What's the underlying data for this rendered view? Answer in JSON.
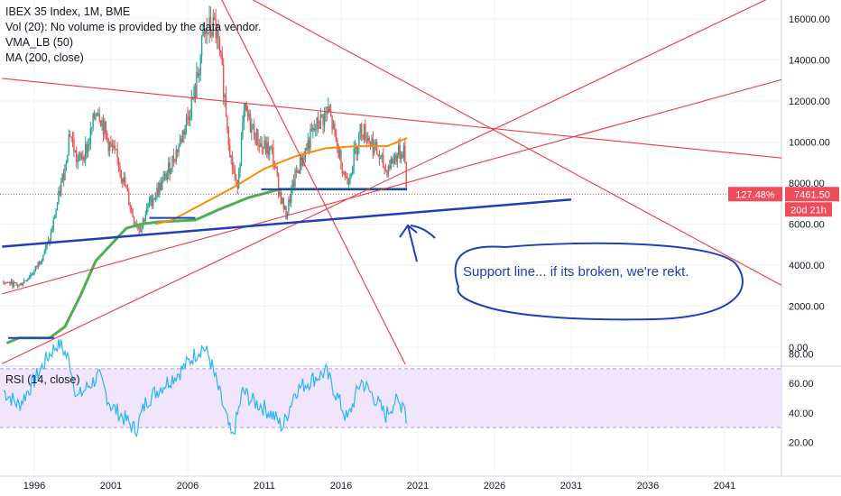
{
  "legend": {
    "title": "IBEX 35 Index, 1M, BME",
    "volume_note": "Vol (20): No volume is provided by the data vendor.",
    "vma": "VMA_LB (50)",
    "ma": "MA (200, close)",
    "rsi": "RSI (14, close)"
  },
  "price_badge": {
    "percent": "127.48%",
    "price": "7461.50",
    "countdown": "20d 21h"
  },
  "annotation": "Support line... if its broken, we're rekt.",
  "colors": {
    "up": "#26a69a",
    "down": "#ef5350",
    "ma200": "#ff8c00",
    "vma50": "#4caf50",
    "trendline": "#f23645",
    "support": "#1e3fb5",
    "rsi": "#29b6f6",
    "rsi_band": "#f0e5fb",
    "badge": "#f04c5c"
  },
  "chart_data": [
    {
      "type": "candlestick",
      "title": "IBEX 35 Index, 1M, BME",
      "x_ticks": [
        "1996",
        "2001",
        "2006",
        "2011",
        "2016",
        "2021",
        "2026",
        "2031",
        "2036",
        "2041"
      ],
      "x_tick_years": [
        1996,
        2001,
        2006,
        2011,
        2016,
        2021,
        2026,
        2031,
        2036,
        2041
      ],
      "y_ticks": [
        "0.00",
        "2000.00",
        "4000.00",
        "6000.00",
        "8000.00",
        "10000.00",
        "12000.00",
        "14000.00",
        "16000.00"
      ],
      "y_tick_values": [
        0,
        2000,
        4000,
        6000,
        8000,
        10000,
        12000,
        14000,
        16000
      ],
      "close_anchors": [
        [
          1994.0,
          3200
        ],
        [
          1995.0,
          3000
        ],
        [
          1996.0,
          3700
        ],
        [
          1997.0,
          5200
        ],
        [
          1998.0,
          8800
        ],
        [
          1998.3,
          10600
        ],
        [
          1998.8,
          9000
        ],
        [
          1999.5,
          9800
        ],
        [
          2000.1,
          11800
        ],
        [
          2000.8,
          10000
        ],
        [
          2001.5,
          9000
        ],
        [
          2002.5,
          6200
        ],
        [
          2002.9,
          5800
        ],
        [
          2003.5,
          7000
        ],
        [
          2004.5,
          8200
        ],
        [
          2005.5,
          10000
        ],
        [
          2006.5,
          12500
        ],
        [
          2007.0,
          15000
        ],
        [
          2007.4,
          15500
        ],
        [
          2007.8,
          15600
        ],
        [
          2008.3,
          13000
        ],
        [
          2008.8,
          9300
        ],
        [
          2009.2,
          7700
        ],
        [
          2009.7,
          11500
        ],
        [
          2010.3,
          10500
        ],
        [
          2010.8,
          9800
        ],
        [
          2011.5,
          9500
        ],
        [
          2012.0,
          7500
        ],
        [
          2012.4,
          6400
        ],
        [
          2013.0,
          8300
        ],
        [
          2014.0,
          10200
        ],
        [
          2014.5,
          10900
        ],
        [
          2015.2,
          11500
        ],
        [
          2015.8,
          9600
        ],
        [
          2016.4,
          8000
        ],
        [
          2017.3,
          10700
        ],
        [
          2018.0,
          10000
        ],
        [
          2018.9,
          8600
        ],
        [
          2019.5,
          9300
        ],
        [
          2019.9,
          9500
        ],
        [
          2020.1,
          9700
        ],
        [
          2020.3,
          7450
        ]
      ],
      "ma200_anchors": [
        [
          2003.9,
          6000
        ],
        [
          2005.0,
          6200
        ],
        [
          2007.0,
          7000
        ],
        [
          2009.0,
          7800
        ],
        [
          2011.0,
          8700
        ],
        [
          2013.0,
          9300
        ],
        [
          2015.0,
          9700
        ],
        [
          2017.0,
          9800
        ],
        [
          2019.0,
          9800
        ],
        [
          2020.3,
          10200
        ]
      ],
      "vma50_anchors": [
        [
          1994.2,
          200
        ],
        [
          1995.0,
          450
        ],
        [
          1997.0,
          450
        ],
        [
          1998.0,
          1000
        ],
        [
          1999.0,
          2500
        ],
        [
          2000.0,
          4200
        ],
        [
          2001.0,
          5000
        ],
        [
          2002.0,
          5800
        ],
        [
          2003.0,
          6000
        ],
        [
          2004.0,
          6100
        ],
        [
          2006.5,
          6200
        ],
        [
          2008.0,
          6700
        ],
        [
          2010.0,
          7300
        ],
        [
          2012.0,
          7700
        ],
        [
          2014.0,
          7700
        ],
        [
          2016.0,
          7700
        ],
        [
          2020.3,
          7700
        ]
      ],
      "horizontal_segments": [
        {
          "x0": 1994.3,
          "x1": 1997.3,
          "y": 450
        },
        {
          "x0": 2003.5,
          "x1": 2006.5,
          "y": 6300
        },
        {
          "x0": 2010.8,
          "x1": 2020.3,
          "y": 7700
        }
      ],
      "support_line": {
        "x0": 1993.9,
        "y0": 4900,
        "x1": 2031.0,
        "y1": 7200
      },
      "trendlines": [
        {
          "x0": 1993.9,
          "y0": 13100,
          "x1": 2045.0,
          "y1": 9200
        },
        {
          "x0": 2007.6,
          "y0": 18000,
          "x1": 2045.0,
          "y1": 2900
        },
        {
          "x0": 2007.5,
          "y0": 18000,
          "x1": 2020.5,
          "y1": -1300
        },
        {
          "x0": 1993.9,
          "y0": 2600,
          "x1": 2045.0,
          "y1": 13100
        },
        {
          "x0": 1993.9,
          "y0": -800,
          "x1": 2045.0,
          "y1": 17400
        }
      ],
      "last_price": 7461.5
    },
    {
      "type": "line",
      "title": "RSI (14, close)",
      "y_ticks": [
        "20.00",
        "40.00",
        "60.00",
        "80.00"
      ],
      "y_tick_values": [
        20,
        40,
        60,
        80
      ],
      "band": [
        30,
        70
      ],
      "rsi_anchors": [
        [
          1994.0,
          55
        ],
        [
          1995.0,
          45
        ],
        [
          1996.0,
          62
        ],
        [
          1997.0,
          80
        ],
        [
          1997.6,
          88
        ],
        [
          1998.3,
          75
        ],
        [
          1998.8,
          50
        ],
        [
          1999.5,
          58
        ],
        [
          2000.2,
          65
        ],
        [
          2001.0,
          45
        ],
        [
          2002.0,
          35
        ],
        [
          2002.6,
          28
        ],
        [
          2003.3,
          48
        ],
        [
          2004.3,
          58
        ],
        [
          2005.5,
          68
        ],
        [
          2006.5,
          80
        ],
        [
          2007.0,
          85
        ],
        [
          2007.4,
          78
        ],
        [
          2008.3,
          45
        ],
        [
          2008.9,
          22
        ],
        [
          2009.6,
          55
        ],
        [
          2010.2,
          48
        ],
        [
          2010.8,
          45
        ],
        [
          2011.6,
          38
        ],
        [
          2012.2,
          30
        ],
        [
          2013.0,
          55
        ],
        [
          2014.0,
          62
        ],
        [
          2015.0,
          68
        ],
        [
          2015.8,
          50
        ],
        [
          2016.4,
          35
        ],
        [
          2017.3,
          62
        ],
        [
          2018.2,
          50
        ],
        [
          2018.9,
          38
        ],
        [
          2019.5,
          48
        ],
        [
          2019.9,
          45
        ],
        [
          2020.1,
          50
        ],
        [
          2020.3,
          30
        ]
      ]
    }
  ]
}
